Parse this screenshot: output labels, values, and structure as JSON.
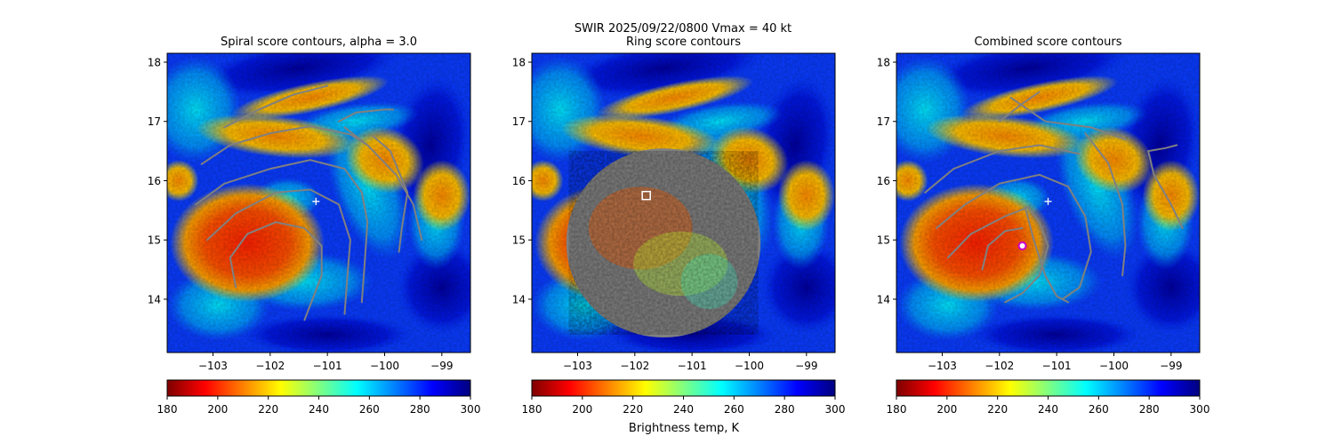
{
  "figure": {
    "suptitle_line1": "SWIR  2025/09/22/0800    Vmax = 40 kt",
    "colorbar_label": "Brightness temp, K"
  },
  "colors": {
    "contour": "#808080",
    "marker_white": "#ffffff",
    "marker_magenta": "#cc00cc",
    "colormap": [
      "#7f0000",
      "#ff0000",
      "#ff8000",
      "#ffff00",
      "#80ff80",
      "#00ffff",
      "#0080ff",
      "#0000ff",
      "#00007f"
    ]
  },
  "chart_data": [
    {
      "type": "heatmap",
      "title": "Spiral score contours, alpha =  3.0",
      "xlim": [
        -103.8,
        -98.5
      ],
      "ylim": [
        13.1,
        18.15
      ],
      "xticks": [
        -103,
        -102,
        -101,
        -100,
        -99
      ],
      "yticks": [
        14,
        15,
        16,
        17,
        18
      ],
      "xtick_labels": [
        "−103",
        "−102",
        "−101",
        "−100",
        "−99"
      ],
      "ytick_labels": [
        "14",
        "15",
        "16",
        "17",
        "18"
      ],
      "colorbar": {
        "min": 180,
        "max": 300,
        "ticks": [
          180,
          200,
          220,
          240,
          260,
          280,
          300
        ],
        "tick_labels": [
          "180",
          "200",
          "220",
          "240",
          "260",
          "280",
          "300"
        ],
        "cmap": "jet_r"
      },
      "overlay": "spiral",
      "markers": [
        {
          "type": "plus",
          "lon": -101.2,
          "lat": 15.65,
          "color": "white"
        }
      ]
    },
    {
      "type": "heatmap",
      "title": "Ring score contours",
      "xlim": [
        -103.8,
        -98.5
      ],
      "ylim": [
        13.1,
        18.15
      ],
      "xticks": [
        -103,
        -102,
        -101,
        -100,
        -99
      ],
      "yticks": [
        14,
        15,
        16,
        17,
        18
      ],
      "xtick_labels": [
        "−103",
        "−102",
        "−101",
        "−100",
        "−99"
      ],
      "ytick_labels": [
        "14",
        "15",
        "16",
        "17",
        "18"
      ],
      "colorbar": {
        "min": 180,
        "max": 300,
        "ticks": [
          180,
          200,
          220,
          240,
          260,
          280,
          300
        ],
        "tick_labels": [
          "180",
          "200",
          "220",
          "240",
          "260",
          "280",
          "300"
        ],
        "cmap": "jet_r"
      },
      "overlay": "ring",
      "markers": [
        {
          "type": "square",
          "lon": -101.8,
          "lat": 15.75,
          "color": "white"
        }
      ]
    },
    {
      "type": "heatmap",
      "title": "Combined score contours",
      "xlim": [
        -103.8,
        -98.5
      ],
      "ylim": [
        13.1,
        18.15
      ],
      "xticks": [
        -103,
        -102,
        -101,
        -100,
        -99
      ],
      "yticks": [
        14,
        15,
        16,
        17,
        18
      ],
      "xtick_labels": [
        "−103",
        "−102",
        "−101",
        "−100",
        "−99"
      ],
      "ytick_labels": [
        "14",
        "15",
        "16",
        "17",
        "18"
      ],
      "colorbar": {
        "min": 180,
        "max": 300,
        "ticks": [
          180,
          200,
          220,
          240,
          260,
          280,
          300
        ],
        "tick_labels": [
          "180",
          "200",
          "220",
          "240",
          "260",
          "280",
          "300"
        ],
        "cmap": "jet_r"
      },
      "overlay": "combined",
      "markers": [
        {
          "type": "plus",
          "lon": -101.15,
          "lat": 15.65,
          "color": "white"
        },
        {
          "type": "circle",
          "lon": -101.6,
          "lat": 14.9,
          "color": "magenta"
        }
      ]
    }
  ]
}
